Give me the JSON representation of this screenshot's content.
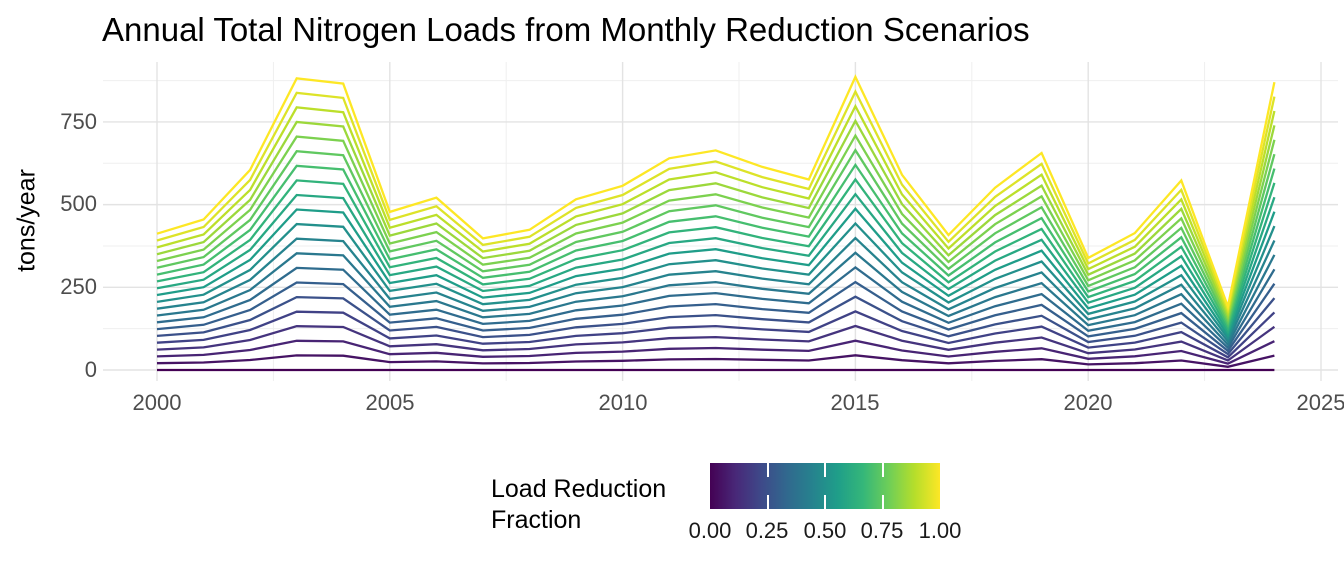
{
  "chart_data": {
    "type": "line",
    "title": "Annual Total Nitrogen Loads from Monthly Reduction Scenarios",
    "xlabel": "",
    "ylabel": "tons/year",
    "grid": true,
    "background": "#ffffff",
    "years": [
      2000,
      2001,
      2002,
      2003,
      2004,
      2005,
      2006,
      2007,
      2008,
      2009,
      2010,
      2011,
      2012,
      2013,
      2014,
      2015,
      2016,
      2017,
      2018,
      2019,
      2020,
      2021,
      2022,
      2023,
      2024
    ],
    "annual_total_at_fraction_1": [
      412,
      455,
      605,
      882,
      866,
      478,
      521,
      398,
      424,
      516,
      557,
      640,
      664,
      614,
      576,
      886,
      590,
      408,
      551,
      656,
      339,
      414,
      573,
      192,
      870
    ],
    "fractions": [
      0,
      0.05,
      0.1,
      0.15,
      0.2,
      0.25,
      0.3,
      0.35,
      0.4,
      0.45,
      0.5,
      0.55,
      0.6,
      0.65,
      0.7,
      0.75,
      0.8,
      0.85,
      0.9,
      0.95,
      1
    ],
    "series_rule": "each line plots fraction * annual_total_at_fraction_1 for its load reduction fraction; line color = viridis(fraction)",
    "x_ticks": [
      2000,
      2005,
      2010,
      2015,
      2020,
      2025
    ],
    "x_tick_labels": [
      "2000",
      "2005",
      "2010",
      "2015",
      "2020",
      "2025"
    ],
    "x_minor_ticks": [
      2002.5,
      2007.5,
      2012.5,
      2017.5,
      2022.5
    ],
    "y_ticks": [
      0,
      250,
      500,
      750
    ],
    "y_tick_labels": [
      "0",
      "250",
      "500",
      "750"
    ],
    "y_minor_ticks": [
      125,
      375,
      625,
      875
    ],
    "ylim": [
      -44,
      930
    ],
    "xlim": [
      1998.84,
      2025.37
    ],
    "colormap": "viridis",
    "viridis_stops": [
      "#440154",
      "#482878",
      "#3e4989",
      "#31688e",
      "#26828e",
      "#1f9e89",
      "#35b779",
      "#6ece58",
      "#b5de2b",
      "#fde725"
    ],
    "grid_major_color": "#e3e3e3",
    "grid_minor_color": "#efefef",
    "axis_text_color": "#4d4d4d",
    "legend": {
      "position": "bottom",
      "title_line1": "Load Reduction",
      "title_line2": "Fraction",
      "tick_labels": [
        "0.00",
        "0.25",
        "0.50",
        "0.75",
        "1.00"
      ],
      "tick_values": [
        0.0,
        0.25,
        0.5,
        0.75,
        1.0
      ],
      "inner_tick_values": [
        0.25,
        0.5,
        0.75
      ]
    }
  }
}
